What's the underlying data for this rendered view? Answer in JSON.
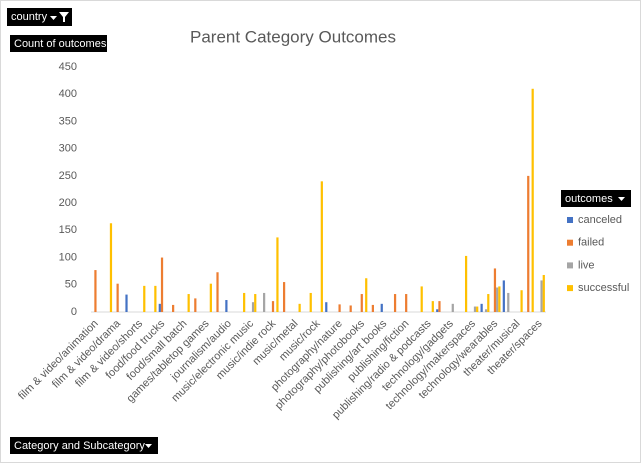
{
  "chart_data": {
    "type": "bar",
    "title": "Parent Category Outcomes",
    "filter_label": "country",
    "y_label": "Count of outcomes",
    "x_label": "Category and Subcategory",
    "legend_title": "outcomes",
    "categories": [
      "film & video/animation",
      null,
      "film & video/drama",
      null,
      "film & video/shorts",
      null,
      "food/food trucks",
      null,
      "food/small batch",
      null,
      "games/tabletop games",
      null,
      "journalism/audio",
      null,
      "music/electronic music",
      null,
      "music/indie rock",
      null,
      "music/metal",
      null,
      "music/rock",
      null,
      "photography/nature",
      null,
      "photography/photobooks",
      null,
      "publishing/art books",
      null,
      "publishing/fiction",
      null,
      "publishing/radio & podcasts",
      null,
      "technology/gadgets",
      null,
      "technology/makerspaces",
      null,
      "technology/wearables",
      null,
      "theater/musical",
      null,
      "theater/spaces"
    ],
    "series": [
      {
        "name": "canceled",
        "color": "#4472c4",
        "values": [
          null,
          null,
          null,
          32,
          null,
          null,
          15,
          null,
          null,
          null,
          null,
          null,
          22,
          null,
          null,
          null,
          null,
          null,
          null,
          null,
          null,
          18,
          null,
          null,
          null,
          null,
          15,
          null,
          null,
          null,
          null,
          5,
          null,
          null,
          null,
          15,
          null,
          58,
          null,
          null,
          null
        ]
      },
      {
        "name": "failed",
        "color": "#ed7d31",
        "values": [
          77,
          null,
          52,
          null,
          null,
          null,
          100,
          13,
          null,
          25,
          null,
          73,
          null,
          null,
          null,
          null,
          20,
          55,
          null,
          null,
          null,
          null,
          14,
          12,
          33,
          13,
          null,
          33,
          33,
          null,
          null,
          20,
          null,
          null,
          null,
          null,
          80,
          null,
          null,
          250,
          null
        ]
      },
      {
        "name": "live",
        "color": "#a5a5a5",
        "values": [
          null,
          null,
          null,
          null,
          null,
          null,
          null,
          null,
          null,
          null,
          null,
          null,
          null,
          null,
          18,
          35,
          null,
          null,
          null,
          null,
          null,
          null,
          null,
          null,
          null,
          null,
          null,
          null,
          null,
          null,
          null,
          null,
          15,
          null,
          10,
          5,
          45,
          35,
          null,
          null,
          58
        ]
      },
      {
        "name": "successful",
        "color": "#ffc000",
        "values": [
          null,
          163,
          null,
          null,
          48,
          48,
          null,
          null,
          33,
          null,
          52,
          null,
          null,
          35,
          33,
          null,
          137,
          null,
          15,
          35,
          240,
          null,
          null,
          null,
          62,
          null,
          null,
          null,
          null,
          47,
          20,
          null,
          null,
          103,
          10,
          33,
          47,
          null,
          40,
          410,
          68
        ]
      }
    ],
    "ylim": [
      0,
      450
    ],
    "yticks": [
      0,
      50,
      100,
      150,
      200,
      250,
      300,
      350,
      400,
      450
    ],
    "grid": false,
    "legend": "right"
  }
}
